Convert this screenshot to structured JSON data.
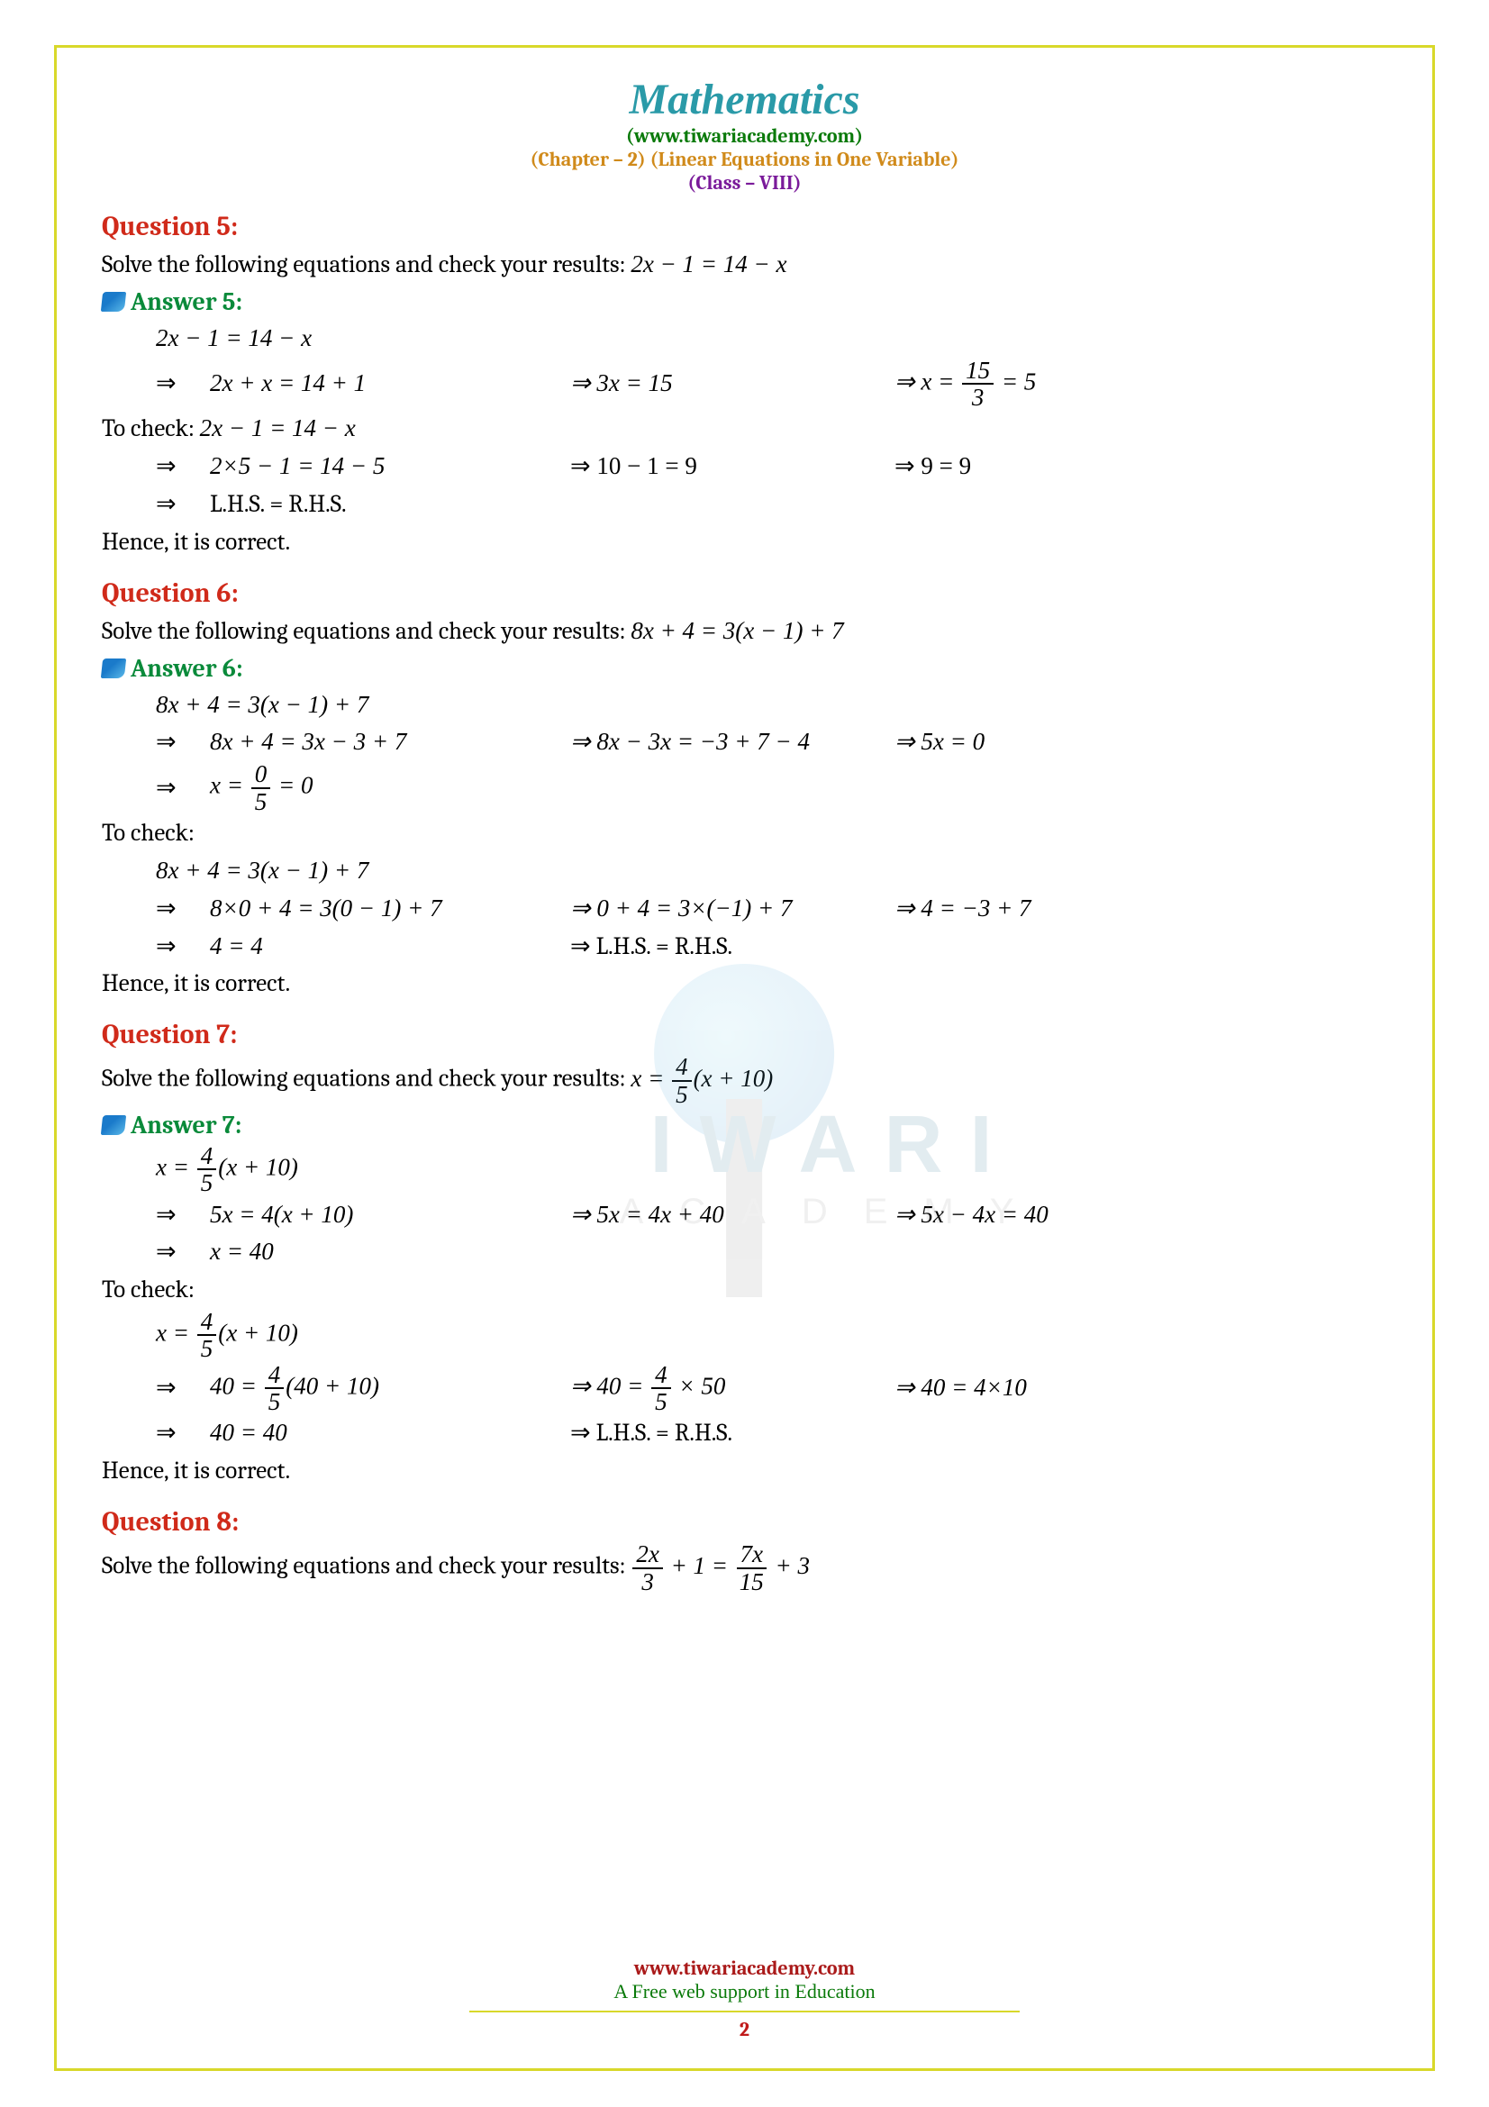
{
  "header": {
    "title": "Mathematics",
    "website": "(www.tiwariacademy.com)",
    "chapter": "(Chapter – 2) (Linear Equations in One Variable)",
    "class": "(Class – VIII)"
  },
  "watermark": {
    "line1": "IWARI",
    "line2": "ACADEMY"
  },
  "q5": {
    "title": "Question 5:",
    "prompt": "Solve the following equations and check your results: ",
    "equation": "2x − 1 = 14 − x",
    "answer_title": "Answer 5:",
    "line0": "2x − 1 = 14 − x",
    "r1a": "2x + x = 14 + 1",
    "r1b": "⇒ 3x = 15",
    "r1c_prefix": "⇒ x = ",
    "r1c_num": "15",
    "r1c_den": "3",
    "r1c_suffix": " = 5",
    "check_label": "To check: ",
    "check_eq": "2x − 1 = 14 − x",
    "r2a": "2×5 − 1 = 14 − 5",
    "r2b": "⇒ 10 − 1 = 9",
    "r2c": "⇒ 9 = 9",
    "r3": "L.H.S. = R.H.S.",
    "hence": "Hence, it is correct."
  },
  "q6": {
    "title": "Question 6:",
    "prompt": "Solve the following equations and check your results: ",
    "equation": "8x + 4 = 3(x − 1) + 7",
    "answer_title": "Answer 6:",
    "line0": "8x + 4 = 3(x − 1) + 7",
    "r1a": "8x + 4 = 3x − 3 + 7",
    "r1b": "⇒ 8x − 3x = −3 + 7 − 4",
    "r1c": "⇒ 5x = 0",
    "r2_prefix": "x = ",
    "r2_num": "0",
    "r2_den": "5",
    "r2_suffix": " = 0",
    "check_label": "To check:",
    "check_eq": "8x + 4 = 3(x − 1) + 7",
    "r3a": "8×0 + 4 = 3(0 − 1) + 7",
    "r3b": "⇒ 0 + 4 = 3×(−1) + 7",
    "r3c": "⇒ 4 = −3 + 7",
    "r4a": "4 = 4",
    "r4b": "⇒ L.H.S. = R.H.S.",
    "hence": "Hence, it is correct."
  },
  "q7": {
    "title": "Question 7:",
    "prompt": "Solve the following equations and check your results: ",
    "eq_prefix": "x = ",
    "eq_num": "4",
    "eq_den": "5",
    "eq_suffix": "(x + 10)",
    "answer_title": "Answer 7:",
    "line0_prefix": "x = ",
    "line0_num": "4",
    "line0_den": "5",
    "line0_suffix": "(x + 10)",
    "r1a": "5x = 4(x + 10)",
    "r1b": "⇒ 5x = 4x + 40",
    "r1c": "⇒ 5x − 4x = 40",
    "r2": "x = 40",
    "check_label": "To check:",
    "check_prefix": "x = ",
    "check_num": "4",
    "check_den": "5",
    "check_suffix": "(x + 10)",
    "r3a_prefix": "40 = ",
    "r3a_num": "4",
    "r3a_den": "5",
    "r3a_suffix": "(40 + 10)",
    "r3b_prefix": "⇒ 40 = ",
    "r3b_num": "4",
    "r3b_den": "5",
    "r3b_suffix": " × 50",
    "r3c": "⇒ 40 = 4×10",
    "r4a": "40 = 40",
    "r4b": "⇒ L.H.S. = R.H.S.",
    "hence": "Hence, it is correct."
  },
  "q8": {
    "title": "Question 8:",
    "prompt": "Solve the following equations and check your results: ",
    "lhs_num": "2x",
    "lhs_den": "3",
    "mid": " + 1 = ",
    "rhs_num": "7x",
    "rhs_den": "15",
    "tail": " + 3"
  },
  "footer": {
    "url": "www.tiwariacademy.com",
    "tagline": "A Free web support in Education",
    "page": "2"
  },
  "symbols": {
    "implies": "⇒"
  },
  "colors": {
    "border": "#d8d82a",
    "title": "#2a9aa8",
    "website": "#0a7a0a",
    "chapter": "#d08a1a",
    "class": "#7a1a9a",
    "question": "#d02a1a",
    "answer": "#0a8a3a",
    "footer_url": "#aa1a1a",
    "footer_tag": "#0a7a0a",
    "page_num": "#c01a1a",
    "text": "#000000",
    "background": "#ffffff"
  },
  "fonts": {
    "title_family": "Times New Roman italic",
    "body_family": "Cambria",
    "tagline_family": "Comic Sans MS",
    "title_size_pt": 36,
    "heading_size_pt": 22,
    "body_size_pt": 20
  }
}
